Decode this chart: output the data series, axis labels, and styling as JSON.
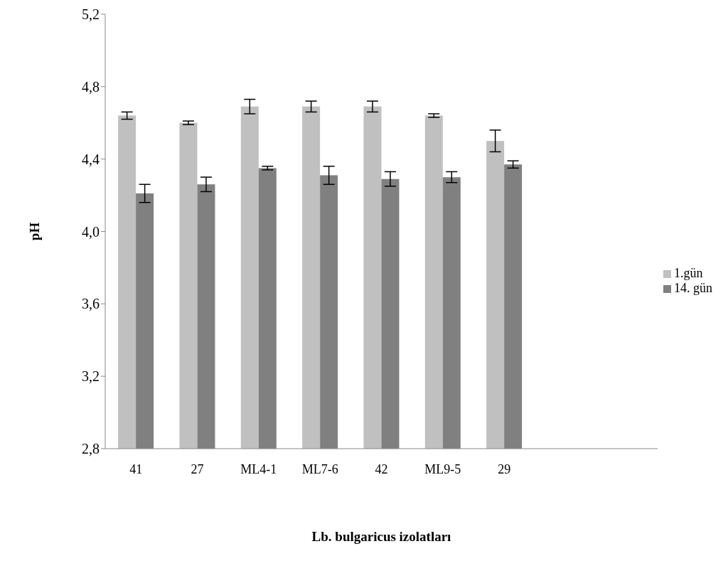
{
  "chart_data": {
    "type": "bar",
    "xlabel": "Lb. bulgaricus izolatları",
    "ylabel": "pH",
    "categories": [
      "41",
      "27",
      "ML4-1",
      "ML7-6",
      "42",
      "ML9-5",
      "29",
      null,
      null
    ],
    "series": [
      {
        "name": "1.gün",
        "color": "#c0c0c0",
        "values": [
          4.64,
          4.6,
          4.69,
          4.69,
          4.69,
          4.64,
          4.5,
          null,
          null
        ],
        "errors": [
          0.02,
          0.01,
          0.04,
          0.03,
          0.03,
          0.01,
          0.06,
          null,
          null
        ]
      },
      {
        "name": "14. gün",
        "color": "#808080",
        "values": [
          4.21,
          4.26,
          4.35,
          4.31,
          4.29,
          4.3,
          4.37,
          null,
          null
        ],
        "errors": [
          0.05,
          0.04,
          0.01,
          0.05,
          0.04,
          0.03,
          0.02,
          null,
          null
        ]
      }
    ],
    "ylim": [
      2.8,
      5.2
    ],
    "yticks": [
      {
        "value": 2.8,
        "label": "2,8"
      },
      {
        "value": 3.2,
        "label": "3,2"
      },
      {
        "value": 3.6,
        "label": "3,6"
      },
      {
        "value": 4.0,
        "label": "4,0"
      },
      {
        "value": 4.4,
        "label": "4,4"
      },
      {
        "value": 4.8,
        "label": "4,8"
      },
      {
        "value": 5.2,
        "label": "5,2"
      }
    ],
    "grid": false,
    "legend": "right"
  }
}
